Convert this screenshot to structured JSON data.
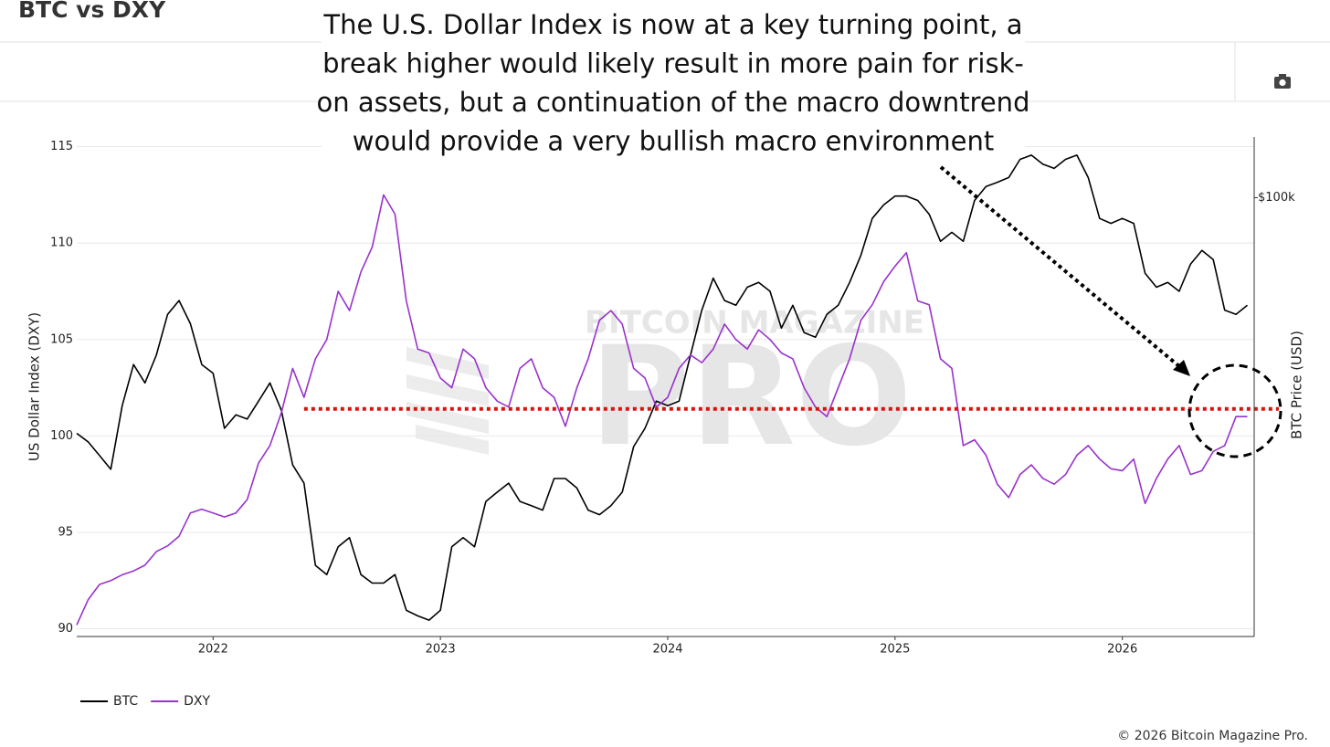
{
  "chart_data": {
    "type": "line",
    "title": "BTC vs DXY",
    "annotation": [
      "The U.S. Dollar Index is now at a key turning point, a",
      "break higher would likely result in more pain for risk-",
      "on assets, but a continuation of the macro downtrend",
      "would provide a very bullish macro environment"
    ],
    "watermark": {
      "top": "BITCOIN MAGAZINE",
      "main": "PRO"
    },
    "y_label": "US Dollar Index (DXY)",
    "y2_label": "BTC Price (USD)",
    "copyright": "© 2026 Bitcoin Magazine Pro.",
    "legend": "bottom-left",
    "grid": "y",
    "y2_scale": "log",
    "xlim": [
      2021.4,
      2026.58
    ],
    "xticks": [
      2022,
      2023,
      2024,
      2025,
      2026
    ],
    "ylim": [
      89.6,
      115.5
    ],
    "yticks": [
      90,
      95,
      100,
      105,
      110,
      115
    ],
    "y2lim": [
      15000,
      130000
    ],
    "y2ticks": [
      {
        "value": 100000,
        "label": "$100k"
      }
    ],
    "reference_line": {
      "value": 101.4,
      "x_start": 2022.4,
      "color": "#e01010"
    },
    "x": [
      2021.4,
      2021.45,
      2021.5,
      2021.55,
      2021.6,
      2021.65,
      2021.7,
      2021.75,
      2021.8,
      2021.85,
      2021.9,
      2021.95,
      2022,
      2022.05,
      2022.1,
      2022.15,
      2022.2,
      2022.25,
      2022.3,
      2022.35,
      2022.4,
      2022.45,
      2022.5,
      2022.55,
      2022.6,
      2022.65,
      2022.7,
      2022.75,
      2022.8,
      2022.85,
      2022.9,
      2022.95,
      2023,
      2023.05,
      2023.1,
      2023.15,
      2023.2,
      2023.25,
      2023.3,
      2023.35,
      2023.4,
      2023.45,
      2023.5,
      2023.55,
      2023.6,
      2023.65,
      2023.7,
      2023.75,
      2023.8,
      2023.85,
      2023.9,
      2023.95,
      2024,
      2024.05,
      2024.1,
      2024.15,
      2024.2,
      2024.25,
      2024.3,
      2024.35,
      2024.4,
      2024.45,
      2024.5,
      2024.55,
      2024.6,
      2024.65,
      2024.7,
      2024.75,
      2024.8,
      2024.85,
      2024.9,
      2024.95,
      2025,
      2025.05,
      2025.1,
      2025.15,
      2025.2,
      2025.25,
      2025.3,
      2025.35,
      2025.4,
      2025.45,
      2025.5,
      2025.55,
      2025.6,
      2025.65,
      2025.7,
      2025.75,
      2025.8,
      2025.85,
      2025.9,
      2025.95,
      2026,
      2026.05,
      2026.1,
      2026.15,
      2026.2,
      2026.25,
      2026.3,
      2026.35,
      2026.4,
      2026.45,
      2026.5,
      2026.55
    ],
    "series": [
      {
        "name": "BTC",
        "color": "#000000",
        "axis": "y2",
        "values": [
          36100,
          34800,
          32800,
          30900,
          40700,
          48600,
          44900,
          50600,
          60400,
          64100,
          58000,
          48600,
          46800,
          36900,
          39100,
          38400,
          41500,
          44900,
          39900,
          31500,
          29100,
          20400,
          19600,
          22100,
          23000,
          19600,
          18900,
          18900,
          19600,
          16800,
          16400,
          16100,
          16800,
          22100,
          23000,
          22100,
          26900,
          28000,
          29100,
          26900,
          26400,
          25900,
          29700,
          29700,
          28500,
          25900,
          25400,
          26400,
          28000,
          34100,
          36900,
          41500,
          40700,
          41500,
          50600,
          61500,
          70600,
          64100,
          62800,
          67900,
          69300,
          66700,
          56900,
          62800,
          55800,
          54700,
          60400,
          62800,
          69300,
          78000,
          91400,
          96900,
          100700,
          100700,
          98800,
          93100,
          82800,
          86100,
          82800,
          98800,
          104900,
          106900,
          109100,
          118000,
          120200,
          115600,
          113500,
          118000,
          120200,
          109100,
          91400,
          89500,
          91400,
          89500,
          72100,
          67900,
          69300,
          66700,
          75000,
          79600,
          76500,
          61500,
          60400,
          62800
        ]
      },
      {
        "name": "DXY",
        "color": "#9932cc",
        "values": [
          90.2,
          91.5,
          92.3,
          92.5,
          92.8,
          93.0,
          93.3,
          94.0,
          94.3,
          94.8,
          96.0,
          96.2,
          96.0,
          95.8,
          96.0,
          96.7,
          98.6,
          99.5,
          101.2,
          103.5,
          102.0,
          104.0,
          105.0,
          107.5,
          106.5,
          108.5,
          109.8,
          112.5,
          111.5,
          107.0,
          104.5,
          104.3,
          103.0,
          102.5,
          104.5,
          104.0,
          102.5,
          101.8,
          101.5,
          103.5,
          104.0,
          102.5,
          102.0,
          100.5,
          102.5,
          104.0,
          106.0,
          106.5,
          105.8,
          103.5,
          103.0,
          101.5,
          102.0,
          103.5,
          104.2,
          103.8,
          104.5,
          105.8,
          105.0,
          104.5,
          105.5,
          105.0,
          104.3,
          104.0,
          102.5,
          101.5,
          101.0,
          102.5,
          104.0,
          106.0,
          106.8,
          108.0,
          108.8,
          109.5,
          107.0,
          106.8,
          104.0,
          103.5,
          99.5,
          99.8,
          99.0,
          97.5,
          96.8,
          98.0,
          98.5,
          97.8,
          97.5,
          98.0,
          99.0,
          99.5,
          98.8,
          98.3,
          98.2,
          98.8,
          96.5,
          97.8,
          98.8,
          99.5,
          98.0,
          98.2,
          99.2,
          99.5,
          101.0,
          101.0
        ]
      }
    ]
  }
}
